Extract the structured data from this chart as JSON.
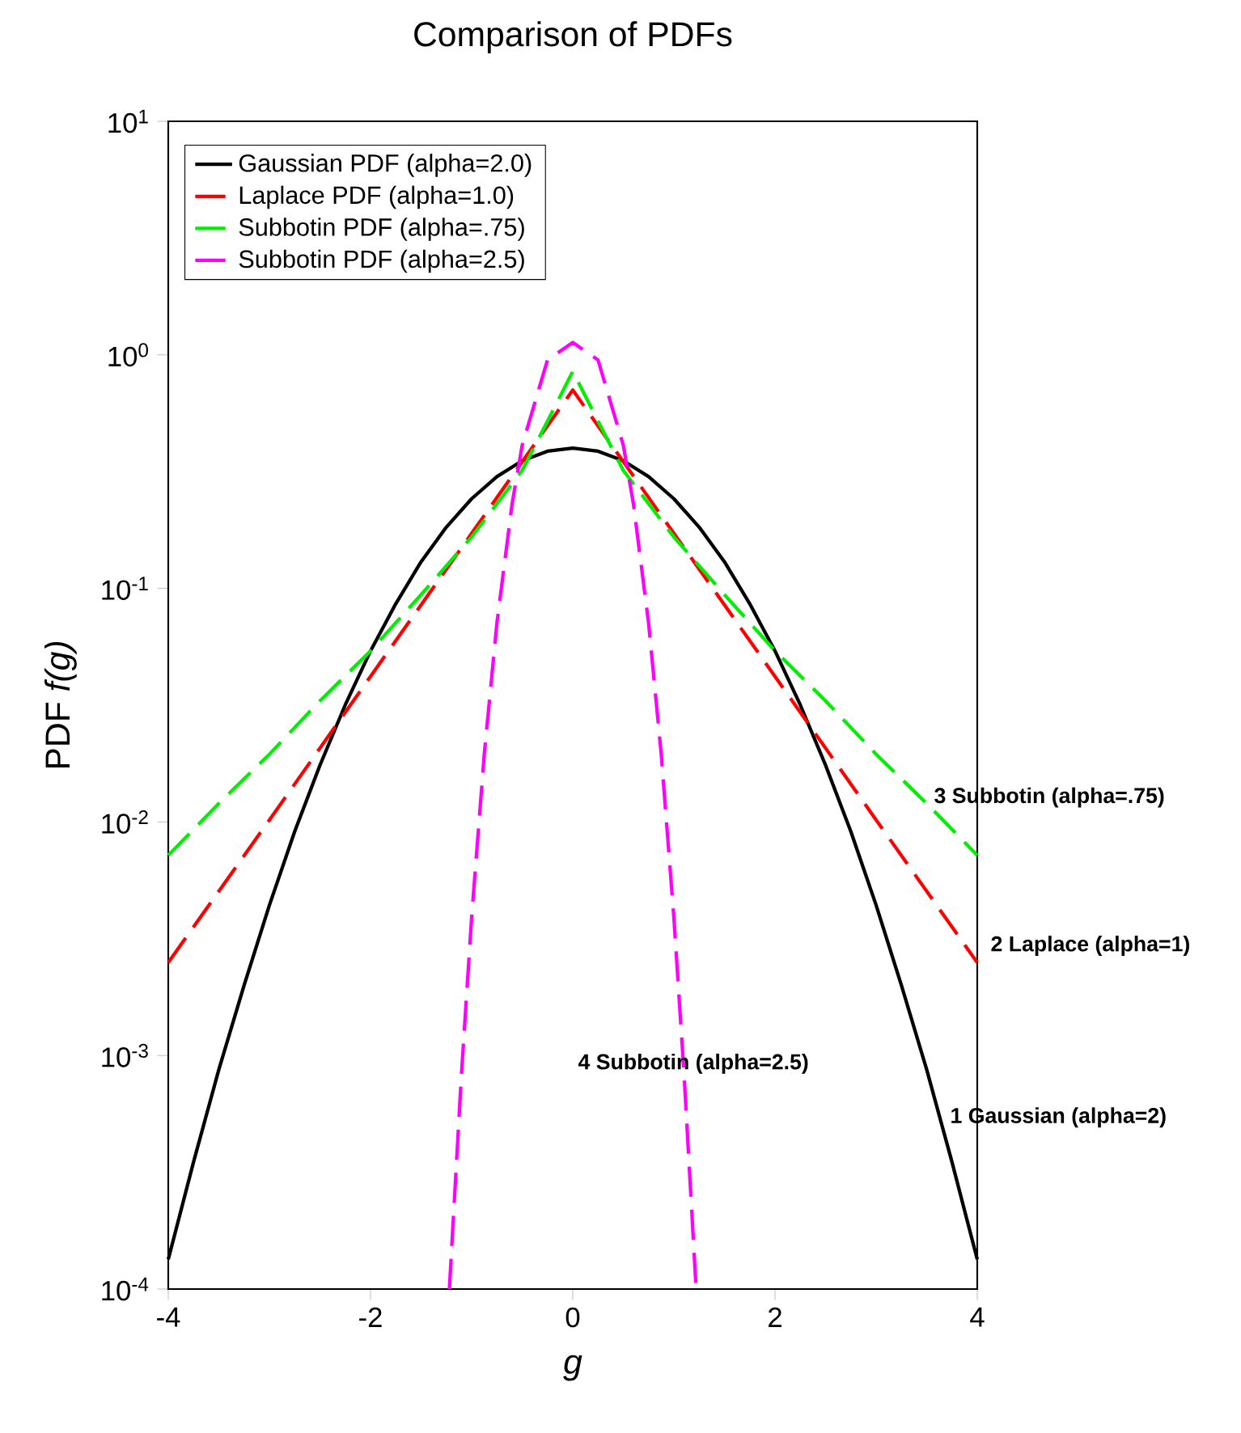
{
  "chart_data": {
    "type": "line",
    "title": "Comparison of PDFs",
    "xlabel": "*g*",
    "ylabel": "PDF *f(g)*",
    "log": "y",
    "xlim": [
      -4,
      4
    ],
    "ylim": [
      0.0001,
      10
    ],
    "xticks": [
      -4,
      -2,
      0,
      2,
      4
    ],
    "yticks": [
      {
        "value": 0.0001,
        "label": "10$^{-4}$"
      },
      {
        "value": 0.001,
        "label": "10$^{-3}$"
      },
      {
        "value": 0.01,
        "label": "10$^{-2}$"
      },
      {
        "value": 0.1,
        "label": "10$^{-1}$"
      },
      {
        "value": 1,
        "label": "10$^{0}$"
      },
      {
        "value": 10,
        "label": "10$^{1}$"
      }
    ],
    "legend": "top left",
    "marker": "none",
    "series": [
      {
        "name": "Gaussian PDF (alpha=2.0)",
        "color": "#000000",
        "line_style": "solid",
        "x": [
          -4,
          -3.75,
          -3.5,
          -3.25,
          -3,
          -2.75,
          -2.5,
          -2.25,
          -2,
          -1.75,
          -1.5,
          -1.25,
          -1,
          -0.75,
          -0.5,
          -0.25,
          0,
          0.25,
          0.5,
          0.75,
          1,
          1.25,
          1.5,
          1.75,
          2,
          2.25,
          2.5,
          2.75,
          3,
          3.25,
          3.5,
          3.75,
          4
        ],
        "values": [
          0.000134,
          0.00035,
          0.00087,
          0.002,
          0.0044,
          0.0091,
          0.0175,
          0.0317,
          0.054,
          0.086,
          0.13,
          0.183,
          0.242,
          0.301,
          0.352,
          0.387,
          0.399,
          0.387,
          0.352,
          0.301,
          0.242,
          0.183,
          0.13,
          0.086,
          0.054,
          0.0317,
          0.0175,
          0.0091,
          0.0044,
          0.002,
          0.00087,
          0.00035,
          0.000134
        ]
      },
      {
        "name": "Laplace PDF (alpha=1.0)",
        "color": "#ff0000",
        "line_style": "dashed",
        "x": [
          -4,
          -3,
          -2,
          -1,
          0,
          1,
          2,
          3,
          4
        ],
        "values": [
          0.0025,
          0.0102,
          0.042,
          0.172,
          0.707,
          0.172,
          0.042,
          0.0102,
          0.0025
        ]
      },
      {
        "name": "Subbotin PDF (alpha=.75)",
        "color": "#00ee00",
        "line_style": "dashed",
        "x": [
          -4,
          -3.5,
          -3,
          -2.5,
          -2,
          -1.5,
          -1,
          -0.5,
          -0.25,
          0,
          0.25,
          0.5,
          1,
          1.5,
          2,
          2.5,
          3,
          3.5,
          4
        ],
        "values": [
          0.0072,
          0.012,
          0.0195,
          0.033,
          0.054,
          0.094,
          0.166,
          0.32,
          0.52,
          0.85,
          0.52,
          0.32,
          0.166,
          0.094,
          0.054,
          0.033,
          0.0195,
          0.012,
          0.0072
        ]
      },
      {
        "name": "Subbotin PDF (alpha=2.5)",
        "color": "#ff00ff",
        "line_style": "dashed",
        "x": [
          -1.22,
          -1.1,
          -1,
          -0.875,
          -0.75,
          -0.6,
          -0.5,
          -0.25,
          0,
          0.25,
          0.5,
          0.6,
          0.75,
          0.875,
          1,
          1.1,
          1.22
        ],
        "values": [
          0.0001,
          0.00084,
          0.0039,
          0.0195,
          0.071,
          0.23,
          0.41,
          0.95,
          1.13,
          0.95,
          0.41,
          0.23,
          0.071,
          0.0195,
          0.0039,
          0.00084,
          0.0001
        ]
      }
    ],
    "annotations": [
      "**3  Subbotin (alpha=.75)**",
      "**2  Laplace (alpha=1)**",
      "**4  Subbotin (alpha=2.5)**",
      "**1  Gaussian (alpha=2)**"
    ]
  }
}
